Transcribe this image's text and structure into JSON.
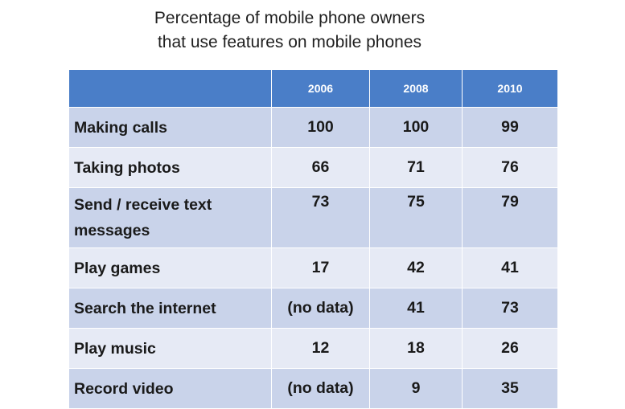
{
  "chart_data": {
    "type": "table",
    "title_lines": [
      "Percentage of mobile phone owners",
      "that use features on mobile phones"
    ],
    "columns": [
      "",
      "2006",
      "2008",
      "2010"
    ],
    "rows": [
      {
        "feature": "Making calls",
        "values": [
          "100",
          "100",
          "99"
        ]
      },
      {
        "feature": "Taking photos",
        "values": [
          "66",
          "71",
          "76"
        ]
      },
      {
        "feature": "Send / receive text messages",
        "values": [
          "73",
          "75",
          "79"
        ]
      },
      {
        "feature": "Play games",
        "values": [
          "17",
          "42",
          "41"
        ]
      },
      {
        "feature": "Search the internet",
        "values": [
          "(no data)",
          "41",
          "73"
        ]
      },
      {
        "feature": "Play music",
        "values": [
          "12",
          "18",
          "26"
        ]
      },
      {
        "feature": "Record video",
        "values": [
          "(no data)",
          "9",
          "35"
        ]
      }
    ],
    "colors": {
      "header": "#4a7ec8",
      "row_dark": "#c9d3ea",
      "row_light": "#e6eaf5"
    }
  }
}
